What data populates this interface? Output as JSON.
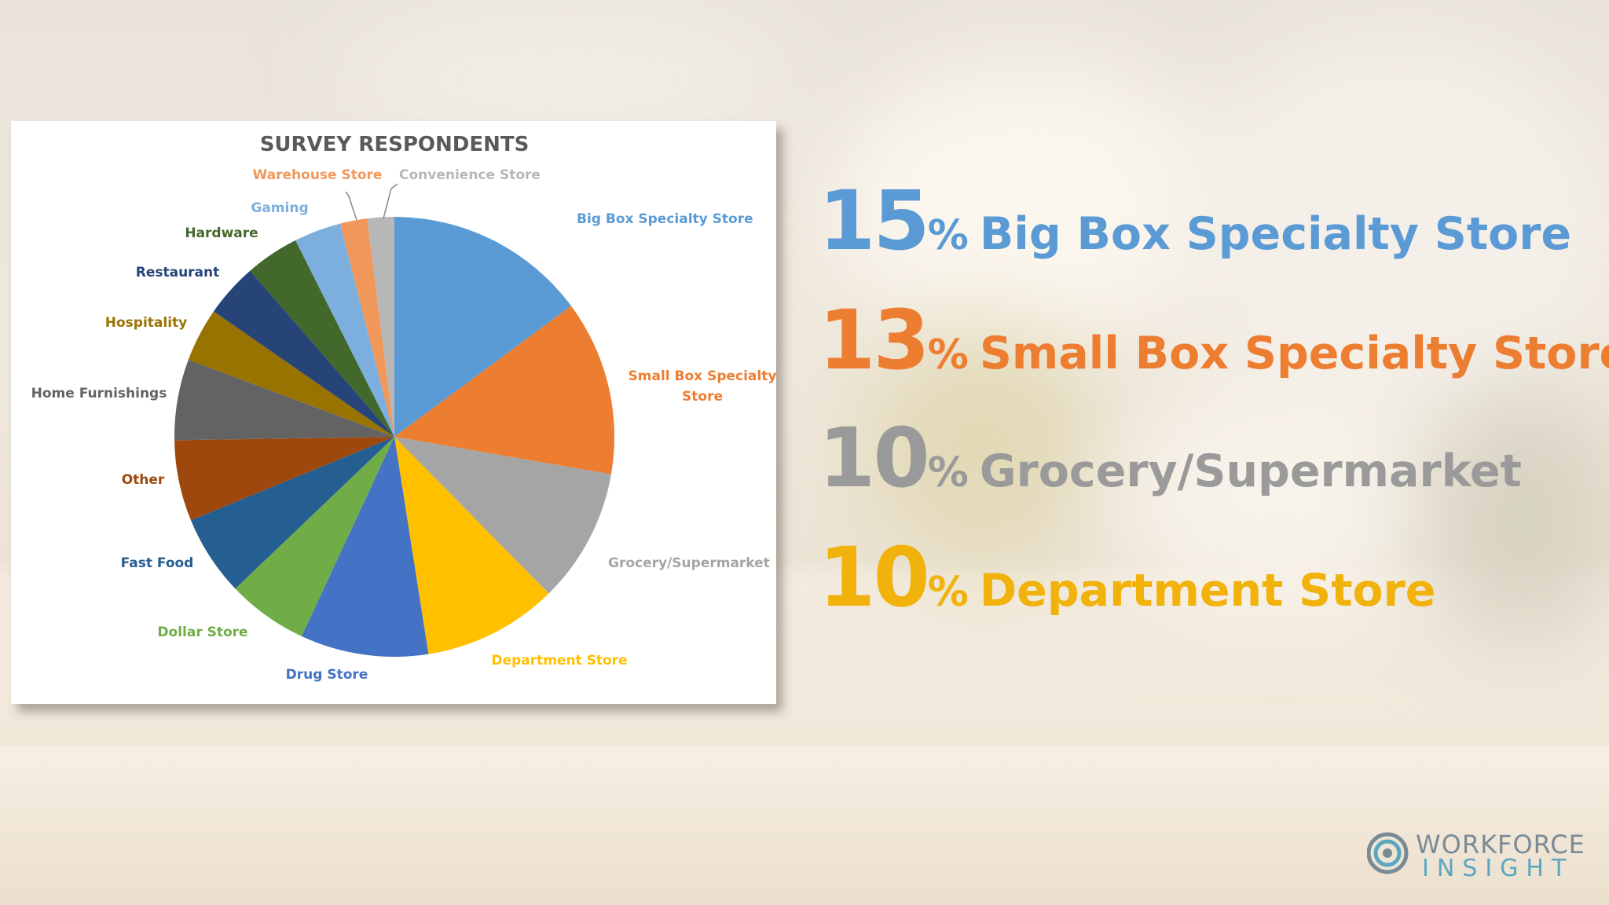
{
  "chart_data": {
    "type": "pie",
    "title": "SURVEY RESPONDENTS",
    "slices": [
      {
        "label": "Big Box Specialty Store",
        "value": 15,
        "color": "#5b9bd5"
      },
      {
        "label": "Small Box Specialty Store",
        "value": 13,
        "color": "#ed7d31"
      },
      {
        "label": "Grocery/Supermarket",
        "value": 10,
        "color": "#a5a5a5"
      },
      {
        "label": "Department Store",
        "value": 10,
        "color": "#ffc000"
      },
      {
        "label": "Drug Store",
        "value": 9.5,
        "color": "#4472c4"
      },
      {
        "label": "Dollar Store",
        "value": 6,
        "color": "#70ad47"
      },
      {
        "label": "Fast Food",
        "value": 6,
        "color": "#255e91"
      },
      {
        "label": "Other",
        "value": 6,
        "color": "#9e480e"
      },
      {
        "label": "Home Furnishings",
        "value": 6,
        "color": "#636363"
      },
      {
        "label": "Hospitality",
        "value": 4,
        "color": "#997300"
      },
      {
        "label": "Restaurant",
        "value": 4,
        "color": "#264478"
      },
      {
        "label": "Hardware",
        "value": 4,
        "color": "#43682b"
      },
      {
        "label": "Gaming",
        "value": 3.5,
        "color": "#7cafdd"
      },
      {
        "label": "Warehouse Store",
        "value": 2,
        "color": "#f1975a"
      },
      {
        "label": "Convenience Store",
        "value": 2,
        "color": "#b7b7b7"
      }
    ]
  },
  "stats": [
    {
      "number": "15",
      "pct": "%",
      "label": "Big Box Specialty Store",
      "color": "#5b9bd5"
    },
    {
      "number": "13",
      "pct": "%",
      "label": "Small Box Specialty Store",
      "color": "#ed7d31"
    },
    {
      "number": "10",
      "pct": "%",
      "label": "Grocery/Supermarket",
      "color": "#9a9a9a"
    },
    {
      "number": "10",
      "pct": "%",
      "label": "Department Store",
      "color": "#f2b20c"
    }
  ],
  "logo": {
    "line1": "WORKFORCE",
    "line2": "INSIGHT"
  }
}
